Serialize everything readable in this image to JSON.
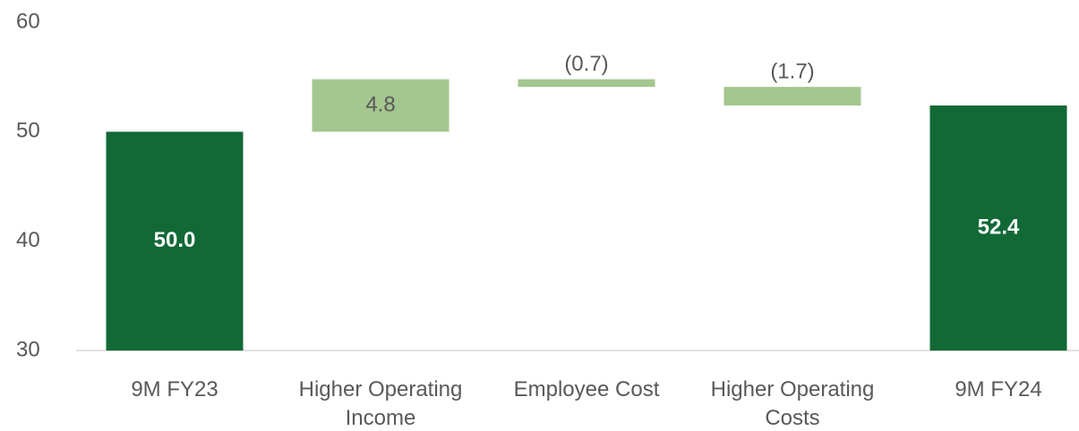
{
  "chart_data": {
    "type": "waterfall",
    "categories": [
      "9M FY23",
      "Higher Operating Income",
      "Employee Cost",
      "Higher Operating Costs",
      "9M FY24"
    ],
    "values": [
      50.0,
      4.8,
      -0.7,
      -1.7,
      52.4
    ],
    "value_labels": [
      "50.0",
      "4.8",
      "(0.7)",
      "(1.7)",
      "52.4"
    ],
    "measures": [
      "absolute",
      "relative",
      "relative",
      "relative",
      "total"
    ],
    "colors": [
      "#116936",
      "#a4c68f",
      "#a4c68f",
      "#a4c68f",
      "#116936"
    ],
    "ylim": [
      30,
      60
    ],
    "yticks": [
      30,
      40,
      50,
      60
    ],
    "grid": false
  }
}
